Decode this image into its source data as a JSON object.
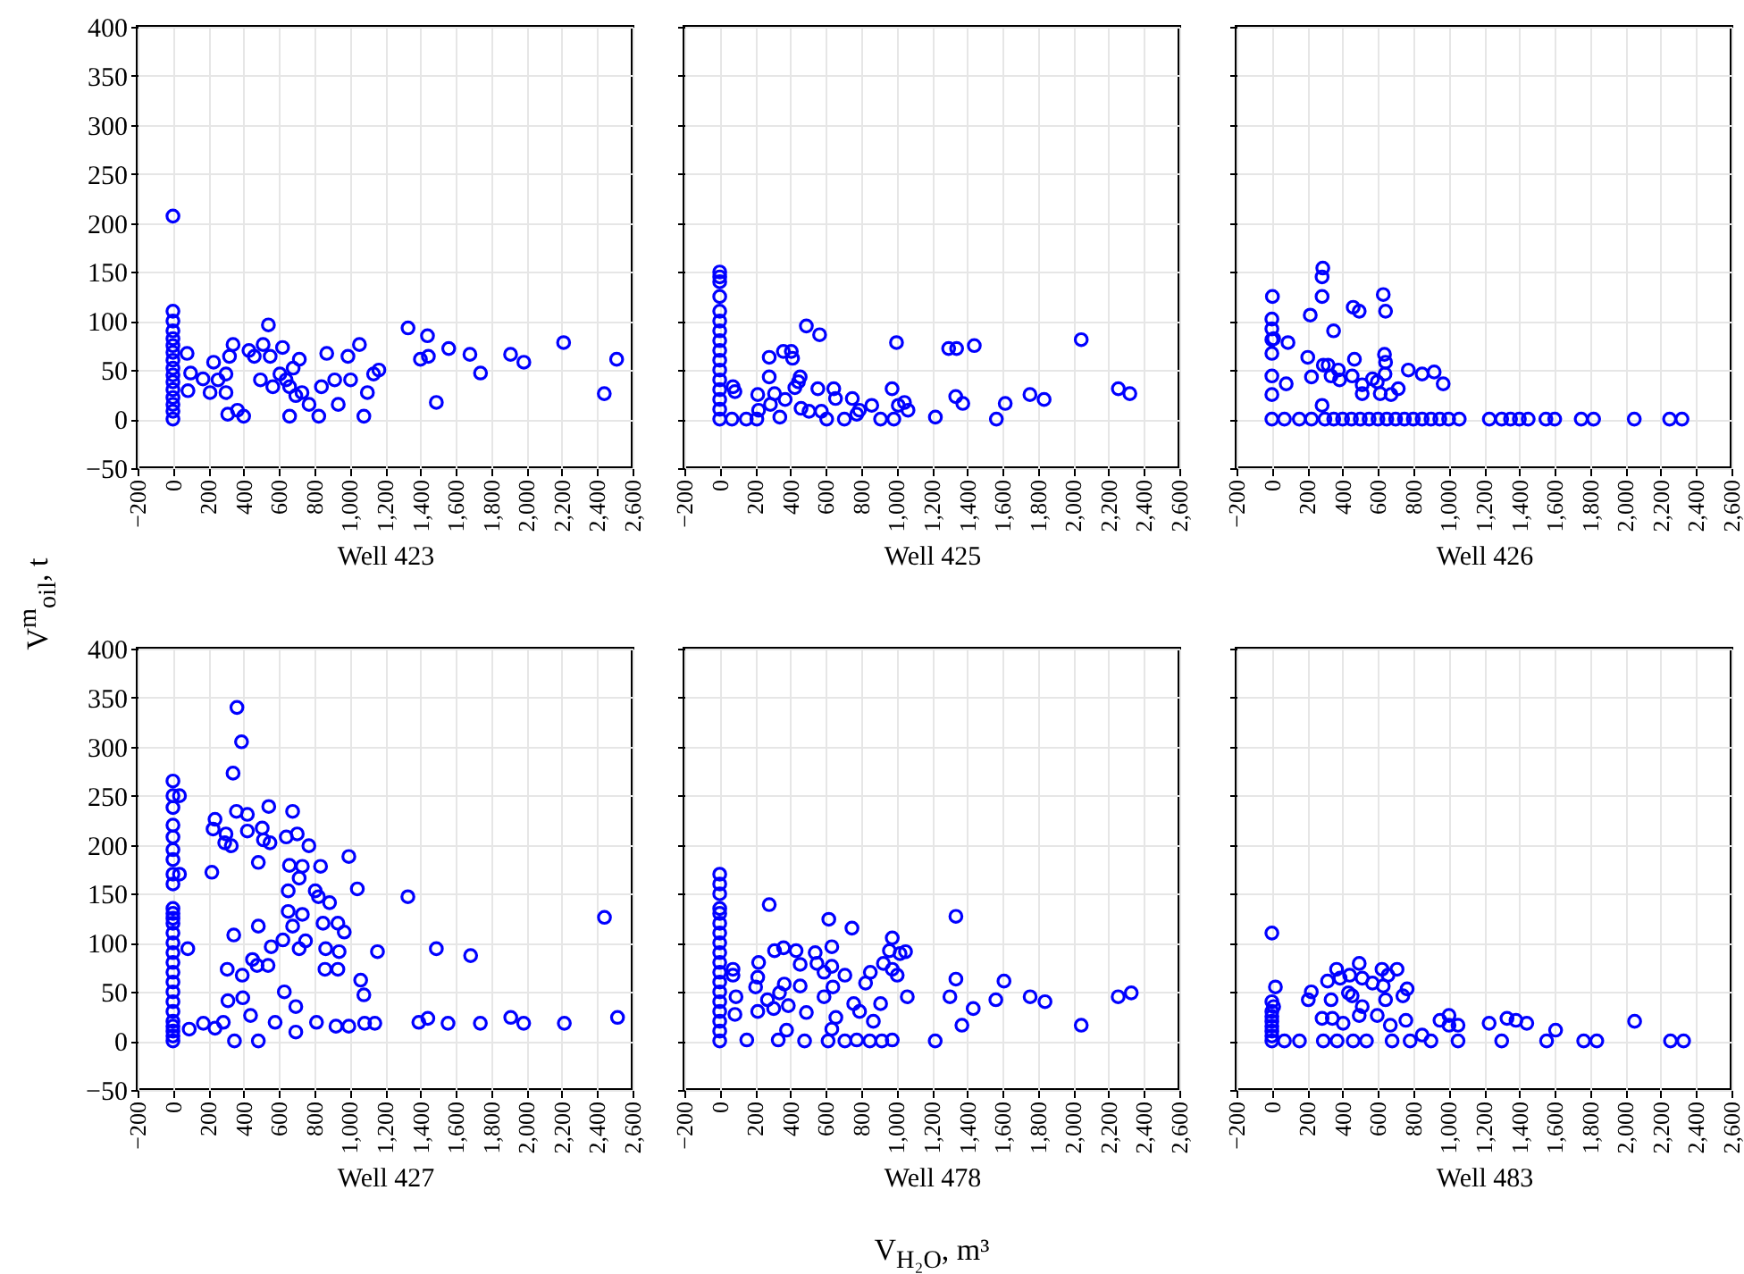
{
  "chart_data": [
    {
      "type": "scatter",
      "xlabel": "Well 423",
      "ylabel": "V$^{m}$$_{oil}$, t",
      "marker": "circle",
      "grid": true,
      "xlim": [
        -200,
        2600
      ],
      "ylim": [
        -50,
        400
      ],
      "xticks": [
        {
          "value": -200,
          "label": "−200"
        },
        0,
        200,
        400,
        600,
        800,
        {
          "value": 1000,
          "label": "1,000"
        },
        {
          "value": 1200,
          "label": "1,200"
        },
        {
          "value": 1400,
          "label": "1,400"
        },
        {
          "value": 1600,
          "label": "1,600"
        },
        {
          "value": 1800,
          "label": "1,800"
        },
        {
          "value": 2000,
          "label": "2,000"
        },
        {
          "value": 2200,
          "label": "2,200"
        },
        {
          "value": 2400,
          "label": "2,400"
        },
        {
          "value": 2600,
          "label": "2,600"
        }
      ],
      "yticks": [
        {
          "value": -50,
          "label": "−50"
        },
        0,
        50,
        100,
        150,
        200,
        250,
        300,
        350,
        400
      ],
      "series": [
        {
          "color": "#0000ff",
          "x": [
            0,
            0,
            0,
            0,
            0,
            0,
            0,
            0,
            0,
            0,
            0,
            0,
            0,
            0,
            0,
            0,
            80,
            85,
            100,
            170,
            210,
            230,
            255,
            300,
            300,
            310,
            340,
            320,
            365,
            400,
            430,
            460,
            495,
            540,
            550,
            565,
            620,
            640,
            660,
            680,
            715,
            730,
            770,
            825,
            840,
            870,
            915,
            935,
            990,
            1005,
            1055,
            1080,
            1100,
            1135,
            1165,
            1330,
            1400,
            1440,
            1445,
            1490,
            1560,
            1680,
            1740,
            1910,
            1985,
            2210,
            2440,
            2510,
            660,
            695,
            605,
            510
          ],
          "values": [
            0,
            8,
            15,
            22,
            30,
            38,
            45,
            52,
            60,
            68,
            75,
            82,
            90,
            100,
            110,
            207,
            67,
            29,
            47,
            41,
            27,
            58,
            40,
            46,
            27,
            5,
            76,
            64,
            9,
            3,
            70,
            64,
            40,
            96,
            64,
            33,
            73,
            40,
            3,
            52,
            61,
            27,
            15,
            3,
            33,
            67,
            40,
            15,
            64,
            40,
            76,
            3,
            27,
            46,
            50,
            93,
            61,
            85,
            64,
            17,
            72,
            66,
            47,
            66,
            58,
            78,
            26,
            61,
            33,
            24,
            46,
            76
          ]
        }
      ]
    },
    {
      "type": "scatter",
      "xlabel": "Well 425",
      "tick_labels": "x",
      "marker": "circle",
      "grid": true,
      "xlim": [
        -200,
        2600
      ],
      "ylim": [
        -50,
        400
      ],
      "xticks": [
        {
          "value": -200,
          "label": "−200"
        },
        0,
        200,
        400,
        600,
        800,
        {
          "value": 1000,
          "label": "1,000"
        },
        {
          "value": 1200,
          "label": "1,200"
        },
        {
          "value": 1400,
          "label": "1,400"
        },
        {
          "value": 1600,
          "label": "1,600"
        },
        {
          "value": 1800,
          "label": "1,800"
        },
        {
          "value": 2000,
          "label": "2,000"
        },
        {
          "value": 2200,
          "label": "2,200"
        },
        {
          "value": 2400,
          "label": "2,400"
        },
        {
          "value": 2600,
          "label": "2,600"
        }
      ],
      "yticks": [
        {
          "value": -50,
          "label": null
        },
        {
          "value": 0,
          "label": null
        },
        {
          "value": 50,
          "label": null
        },
        {
          "value": 100,
          "label": null
        },
        {
          "value": 150,
          "label": null
        },
        {
          "value": 200,
          "label": null
        },
        {
          "value": 250,
          "label": null
        },
        {
          "value": 300,
          "label": null
        },
        {
          "value": 350,
          "label": null
        },
        {
          "value": 400,
          "label": null
        }
      ],
      "series": [
        {
          "color": "#0000ff",
          "x": [
            0,
            0,
            0,
            0,
            0,
            0,
            0,
            0,
            0,
            0,
            0,
            0,
            0,
            0,
            0,
            0,
            75,
            86,
            69,
            150,
            210,
            215,
            220,
            280,
            280,
            287,
            310,
            340,
            360,
            370,
            405,
            412,
            425,
            445,
            455,
            460,
            490,
            505,
            565,
            555,
            605,
            645,
            655,
            705,
            750,
            790,
            860,
            910,
            975,
            985,
            1000,
            1010,
            1045,
            1065,
            1220,
            1295,
            1340,
            1335,
            1375,
            1440,
            1565,
            1615,
            1755,
            1835,
            2045,
            2255,
            2320,
            575,
            775
          ],
          "values": [
            150,
            145,
            140,
            125,
            110,
            100,
            90,
            80,
            70,
            60,
            50,
            40,
            30,
            20,
            10,
            0,
            33,
            28,
            0,
            0,
            0,
            25,
            9,
            63,
            43,
            15,
            26,
            2,
            69,
            20,
            69,
            62,
            32,
            38,
            43,
            11,
            95,
            8,
            86,
            31,
            0,
            31,
            21,
            0,
            21,
            9,
            14,
            0,
            31,
            0,
            78,
            14,
            17,
            9,
            2,
            72,
            72,
            23,
            16,
            75,
            0,
            16,
            25,
            20,
            81,
            31,
            26,
            8,
            5
          ]
        }
      ]
    },
    {
      "type": "scatter",
      "xlabel": "Well 426",
      "tick_labels": "x",
      "marker": "circle",
      "grid": true,
      "xlim": [
        -200,
        2600
      ],
      "ylim": [
        -50,
        400
      ],
      "xticks": [
        {
          "value": -200,
          "label": "−200"
        },
        0,
        200,
        400,
        600,
        800,
        {
          "value": 1000,
          "label": "1,000"
        },
        {
          "value": 1200,
          "label": "1,200"
        },
        {
          "value": 1400,
          "label": "1,400"
        },
        {
          "value": 1600,
          "label": "1,600"
        },
        {
          "value": 1800,
          "label": "1,800"
        },
        {
          "value": 2000,
          "label": "2,000"
        },
        {
          "value": 2200,
          "label": "2,200"
        },
        {
          "value": 2400,
          "label": "2,400"
        },
        {
          "value": 2600,
          "label": "2,600"
        }
      ],
      "yticks": [
        {
          "value": -50,
          "label": null
        },
        {
          "value": 0,
          "label": null
        },
        {
          "value": 50,
          "label": null
        },
        {
          "value": 100,
          "label": null
        },
        {
          "value": 150,
          "label": null
        },
        {
          "value": 200,
          "label": null
        },
        {
          "value": 250,
          "label": null
        },
        {
          "value": 300,
          "label": null
        },
        {
          "value": 350,
          "label": null
        },
        {
          "value": 400,
          "label": null
        }
      ],
      "series": [
        {
          "color": "#0000ff",
          "x": [
            3,
            0,
            0,
            0,
            0,
            0,
            0,
            10,
            0,
            81,
            91,
            71,
            155,
            217,
            203,
            224,
            224,
            288,
            284,
            284,
            291,
            284,
            318,
            349,
            335,
            376,
            383,
            460,
            467,
            494,
            454,
            511,
            511,
            569,
            596,
            630,
            643,
            637,
            643,
            640,
            613,
            674,
            715,
            772,
            850,
            918,
            969,
            300,
            350,
            400,
            450,
            500,
            550,
            600,
            650,
            700,
            750,
            800,
            850,
            900,
            950,
            1000,
            1060,
            1230,
            1300,
            1350,
            1400,
            1450,
            1550,
            1600,
            1750,
            1820,
            2050,
            2250,
            2320
          ],
          "values": [
            125,
            102,
            92,
            81,
            67,
            44,
            25,
            82,
            0,
            36,
            78,
            0,
            0,
            106,
            63,
            43,
            0,
            154,
            145,
            125,
            55,
            14,
            55,
            90,
            44,
            50,
            40,
            114,
            61,
            110,
            44,
            35,
            26,
            41,
            38,
            127,
            110,
            66,
            58,
            46,
            26,
            25,
            31,
            50,
            46,
            48,
            36,
            0,
            0,
            0,
            0,
            0,
            0,
            0,
            0,
            0,
            0,
            0,
            0,
            0,
            0,
            0,
            0,
            0,
            0,
            0,
            0,
            0,
            0,
            0,
            0,
            0,
            0,
            0,
            0
          ]
        }
      ]
    },
    {
      "type": "scatter",
      "xlabel": "Well 427",
      "marker": "circle",
      "grid": true,
      "xlim": [
        -200,
        2600
      ],
      "ylim": [
        -50,
        400
      ],
      "xticks": [
        {
          "value": -200,
          "label": "−200"
        },
        0,
        200,
        400,
        600,
        800,
        {
          "value": 1000,
          "label": "1,000"
        },
        {
          "value": 1200,
          "label": "1,200"
        },
        {
          "value": 1400,
          "label": "1,400"
        },
        {
          "value": 1600,
          "label": "1,600"
        },
        {
          "value": 1800,
          "label": "1,800"
        },
        {
          "value": 2000,
          "label": "2,000"
        },
        {
          "value": 2200,
          "label": "2,200"
        },
        {
          "value": 2400,
          "label": "2,400"
        },
        {
          "value": 2600,
          "label": "2,600"
        }
      ],
      "yticks": [
        {
          "value": -50,
          "label": "−50"
        },
        0,
        50,
        100,
        150,
        200,
        250,
        300,
        350,
        400
      ],
      "series": [
        {
          "color": "#0000ff",
          "x": [
            0,
            0,
            0,
            0,
            0,
            0,
            0,
            0,
            0,
            0,
            0,
            0,
            0,
            0,
            0,
            0,
            0,
            0,
            0,
            0,
            0,
            0,
            0,
            0,
            0,
            0,
            0,
            37,
            37,
            84,
            92,
            172,
            220,
            238,
            238,
            227,
            285,
            300,
            293,
            307,
            311,
            330,
            344,
            348,
            359,
            362,
            340,
            388,
            392,
            395,
            421,
            421,
            439,
            450,
            476,
            483,
            483,
            483,
            505,
            512,
            538,
            542,
            549,
            556,
            578,
            622,
            630,
            641,
            659,
            652,
            652,
            677,
            677,
            695,
            695,
            703,
            714,
            714,
            732,
            732,
            750,
            769,
            812,
            805,
            823,
            835,
            849,
            860,
            864,
            886,
            922,
            933,
            933,
            940,
            969,
            995,
            995,
            1043,
            1062,
            1080,
            1084,
            1142,
            1157,
            1329,
            1391,
            1442,
            1490,
            1556,
            1684,
            1739,
            1911,
            1984,
            2214,
            2441,
            2515
          ],
          "values": [
            265,
            250,
            238,
            220,
            208,
            195,
            185,
            170,
            160,
            135,
            130,
            125,
            120,
            110,
            100,
            90,
            80,
            70,
            60,
            50,
            40,
            30,
            20,
            15,
            10,
            5,
            0,
            250,
            170,
            94,
            12,
            18,
            172,
            13,
            226,
            216,
            19,
            211,
            202,
            73,
            41,
            199,
            108,
            0,
            234,
            340,
            273,
            305,
            67,
            44,
            231,
            214,
            26,
            83,
            77,
            182,
            117,
            0,
            217,
            205,
            77,
            239,
            202,
            96,
            19,
            103,
            50,
            208,
            179,
            153,
            132,
            234,
            117,
            35,
            9,
            211,
            166,
            94,
            178,
            129,
            102,
            199,
            19,
            153,
            147,
            178,
            120,
            73,
            94,
            141,
            15,
            120,
            73,
            91,
            111,
            188,
            15,
            155,
            62,
            47,
            18,
            18,
            91,
            147,
            19,
            23,
            94,
            18,
            87,
            18,
            24,
            18,
            18,
            126,
            24
          ]
        }
      ]
    },
    {
      "type": "scatter",
      "xlabel": "Well 478",
      "tick_labels": "x",
      "marker": "circle",
      "grid": true,
      "xlim": [
        -200,
        2600
      ],
      "ylim": [
        -50,
        400
      ],
      "annotations": [
        "V$_{H₂O}$, m³"
      ],
      "xticks": [
        {
          "value": -200,
          "label": "−200"
        },
        0,
        200,
        400,
        600,
        800,
        {
          "value": 1000,
          "label": "1,000"
        },
        {
          "value": 1200,
          "label": "1,200"
        },
        {
          "value": 1400,
          "label": "1,400"
        },
        {
          "value": 1600,
          "label": "1,600"
        },
        {
          "value": 1800,
          "label": "1,800"
        },
        {
          "value": 2000,
          "label": "2,000"
        },
        {
          "value": 2200,
          "label": "2,200"
        },
        {
          "value": 2400,
          "label": "2,400"
        },
        {
          "value": 2600,
          "label": "2,600"
        }
      ],
      "yticks": [
        {
          "value": -50,
          "label": null
        },
        {
          "value": 0,
          "label": null
        },
        {
          "value": 50,
          "label": null
        },
        {
          "value": 100,
          "label": null
        },
        {
          "value": 150,
          "label": null
        },
        {
          "value": 200,
          "label": null
        },
        {
          "value": 250,
          "label": null
        },
        {
          "value": 300,
          "label": null
        },
        {
          "value": 350,
          "label": null
        },
        {
          "value": 400,
          "label": null
        }
      ],
      "series": [
        {
          "color": "#0000ff",
          "x": [
            0,
            0,
            0,
            0,
            0,
            0,
            0,
            0,
            0,
            0,
            0,
            0,
            0,
            0,
            0,
            0,
            0,
            0,
            75,
            75,
            92,
            86,
            153,
            203,
            220,
            215,
            215,
            280,
            270,
            310,
            305,
            331,
            338,
            361,
            365,
            378,
            388,
            432,
            455,
            455,
            490,
            480,
            540,
            550,
            590,
            590,
            617,
            634,
            634,
            640,
            634,
            613,
            657,
            708,
            708,
            748,
            758,
            791,
            775,
            825,
            852,
            869,
            849,
            910,
            917,
            926,
            960,
            976,
            976,
            976,
            1004,
            1020,
            1051,
            1061,
            1219,
            1302,
            1336,
            1336,
            1370,
            1434,
            1562,
            1608,
            1756,
            1840,
            2045,
            2254,
            2328
          ],
          "values": [
            170,
            160,
            150,
            135,
            130,
            120,
            110,
            100,
            90,
            80,
            70,
            60,
            50,
            40,
            30,
            20,
            10,
            0,
            73,
            67,
            45,
            27,
            1,
            55,
            80,
            65,
            30,
            139,
            42,
            92,
            33,
            1,
            49,
            95,
            58,
            11,
            36,
            92,
            78,
            56,
            29,
            0,
            90,
            79,
            70,
            45,
            124,
            96,
            76,
            55,
            12,
            0,
            24,
            67,
            0,
            115,
            38,
            30,
            1,
            59,
            70,
            20,
            0,
            38,
            0,
            79,
            92,
            105,
            73,
            1,
            67,
            89,
            91,
            45,
            0,
            45,
            127,
            63,
            16,
            33,
            42,
            61,
            45,
            40,
            16,
            45,
            49
          ]
        }
      ]
    },
    {
      "type": "scatter",
      "xlabel": "Well 483",
      "tick_labels": "x",
      "marker": "circle",
      "grid": true,
      "xlim": [
        -200,
        2600
      ],
      "ylim": [
        -50,
        400
      ],
      "xticks": [
        {
          "value": -200,
          "label": "−200"
        },
        0,
        200,
        400,
        600,
        800,
        {
          "value": 1000,
          "label": "1,000"
        },
        {
          "value": 1200,
          "label": "1,200"
        },
        {
          "value": 1400,
          "label": "1,400"
        },
        {
          "value": 1600,
          "label": "1,600"
        },
        {
          "value": 1800,
          "label": "1,800"
        },
        {
          "value": 2000,
          "label": "2,000"
        },
        {
          "value": 2200,
          "label": "2,200"
        },
        {
          "value": 2400,
          "label": "2,400"
        },
        {
          "value": 2600,
          "label": "2,600"
        }
      ],
      "yticks": [
        {
          "value": -50,
          "label": null
        },
        {
          "value": 0,
          "label": null
        },
        {
          "value": 50,
          "label": null
        },
        {
          "value": 100,
          "label": null
        },
        {
          "value": 150,
          "label": null
        },
        {
          "value": 200,
          "label": null
        },
        {
          "value": 250,
          "label": null
        },
        {
          "value": 300,
          "label": null
        },
        {
          "value": 350,
          "label": null
        },
        {
          "value": 400,
          "label": null
        }
      ],
      "series": [
        {
          "color": "#0000ff",
          "x": [
            0,
            20,
            10,
            0,
            0,
            0,
            0,
            0,
            0,
            0,
            0,
            71,
            156,
            206,
            223,
            284,
            291,
            315,
            335,
            342,
            366,
            386,
            369,
            403,
            433,
            440,
            454,
            460,
            494,
            511,
            511,
            494,
            535,
            569,
            596,
            623,
            630,
            643,
            657,
            670,
            680,
            708,
            741,
            765,
            758,
            782,
            850,
            900,
            951,
            1002,
            1002,
            1053,
            1053,
            1229,
            1300,
            1330,
            1381,
            1442,
            1554,
            1605,
            1764,
            1838,
            2052,
            2255,
            2329
          ],
          "values": [
            110,
            55,
            35,
            0,
            5,
            10,
            15,
            20,
            25,
            30,
            40,
            0,
            0,
            42,
            50,
            23,
            0,
            61,
            42,
            23,
            73,
            64,
            0,
            18,
            49,
            67,
            46,
            0,
            79,
            64,
            35,
            26,
            0,
            59,
            26,
            73,
            56,
            42,
            67,
            16,
            0,
            73,
            46,
            53,
            21,
            0,
            6,
            0,
            21,
            26,
            16,
            0,
            16,
            18,
            0,
            23,
            21,
            18,
            0,
            11,
            0,
            0,
            20,
            0,
            0
          ]
        }
      ]
    }
  ]
}
